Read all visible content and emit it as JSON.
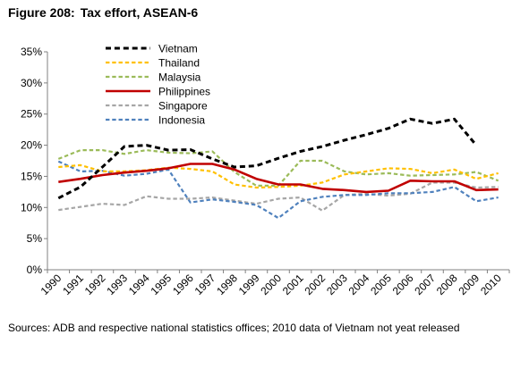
{
  "figure": {
    "number": "Figure 208:",
    "title": "Tax effort, ASEAN-6",
    "source": "Sources: ADB and respective national statistics offices; 2010 data of Vietnam not yeat released"
  },
  "chart_data": {
    "type": "line",
    "title": "Tax effort, ASEAN-6",
    "xlabel": "",
    "ylabel": "",
    "ylim": [
      0,
      35
    ],
    "y_ticks": [
      0,
      5,
      10,
      15,
      20,
      25,
      30,
      35
    ],
    "y_tick_labels": [
      "0%",
      "5%",
      "10%",
      "15%",
      "20%",
      "25%",
      "30%",
      "35%"
    ],
    "x": [
      "1990",
      "1991",
      "1992",
      "1993",
      "1994",
      "1995",
      "1996",
      "1997",
      "1998",
      "1999",
      "2000",
      "2001",
      "2002",
      "2003",
      "2004",
      "2005",
      "2006",
      "2007",
      "2008",
      "2009",
      "2010"
    ],
    "grid": false,
    "legend": "top-left",
    "series": [
      {
        "name": "Vietnam",
        "color": "#000000",
        "style": "dashed",
        "width": 3,
        "values": [
          11.5,
          13.3,
          16.5,
          19.8,
          20.0,
          19.2,
          19.3,
          17.8,
          16.5,
          16.7,
          17.9,
          19.0,
          19.8,
          20.8,
          21.7,
          22.7,
          24.2,
          23.5,
          24.2,
          20.0,
          null
        ]
      },
      {
        "name": "Thailand",
        "color": "#ffc000",
        "style": "dashed",
        "width": 2.2,
        "values": [
          16.5,
          16.8,
          15.8,
          15.8,
          16.0,
          16.4,
          16.2,
          15.8,
          13.7,
          13.2,
          13.3,
          13.5,
          14.0,
          15.3,
          15.8,
          16.3,
          16.2,
          15.5,
          16.1,
          14.6,
          15.5
        ]
      },
      {
        "name": "Malaysia",
        "color": "#9bbb59",
        "style": "dashed",
        "width": 2.2,
        "values": [
          17.8,
          19.2,
          19.2,
          18.6,
          19.2,
          18.8,
          18.7,
          19.0,
          15.7,
          13.5,
          13.5,
          17.5,
          17.5,
          15.8,
          15.3,
          15.5,
          15.1,
          15.2,
          15.3,
          15.7,
          14.3
        ]
      },
      {
        "name": "Philippines",
        "color": "#c00000",
        "style": "solid",
        "width": 2.6,
        "values": [
          14.1,
          14.6,
          15.2,
          15.6,
          15.9,
          16.3,
          17.0,
          17.0,
          16.1,
          14.6,
          13.7,
          13.7,
          13.0,
          12.8,
          12.5,
          12.7,
          14.3,
          14.2,
          14.2,
          12.8,
          12.9
        ]
      },
      {
        "name": "Singapore",
        "color": "#a6a6a6",
        "style": "dashed",
        "width": 2.2,
        "values": [
          9.6,
          10.1,
          10.6,
          10.4,
          11.8,
          11.4,
          11.4,
          11.6,
          11.1,
          10.6,
          11.4,
          11.6,
          9.5,
          12.0,
          12.2,
          11.9,
          12.2,
          14.0,
          14.0,
          13.2,
          13.3
        ]
      },
      {
        "name": "Indonesia",
        "color": "#4f81bd",
        "style": "dashed",
        "width": 2.2,
        "values": [
          17.4,
          15.8,
          15.9,
          15.1,
          15.4,
          16.1,
          10.8,
          11.3,
          10.9,
          10.4,
          8.3,
          11.0,
          11.7,
          12.0,
          12.0,
          12.3,
          12.3,
          12.5,
          13.3,
          11.0,
          11.6
        ]
      }
    ]
  }
}
